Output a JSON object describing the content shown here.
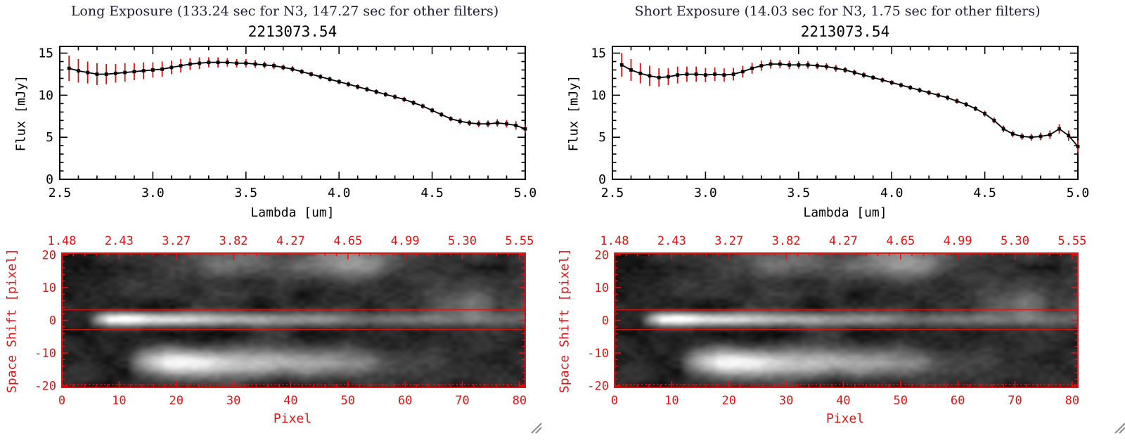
{
  "panels": [
    {
      "title": "Long Exposure (133.24 sec for N3, 147.27 sec for other filters)",
      "plot_title": "2213073.54"
    },
    {
      "title": "Short Exposure (14.03 sec for N3, 1.75 sec for other filters)",
      "plot_title": "2213073.54"
    }
  ],
  "colors": {
    "axis_red": "#e11212",
    "error_red": "#cf1111",
    "line_black": "#000000",
    "title_ink": "#1d1d35"
  },
  "chart_data": [
    {
      "type": "line",
      "panel": "long-exposure-spectrum",
      "title": "2213073.54",
      "xlabel": "Lambda [um]",
      "ylabel": "Flux [mJy]",
      "xlim": [
        2.5,
        5.0
      ],
      "ylim": [
        0,
        15.8
      ],
      "x_tick_values": [
        2.5,
        3.0,
        3.5,
        4.0,
        4.5,
        5.0
      ],
      "x_tick_labels": [
        "2.5",
        "3.0",
        "3.5",
        "4.0",
        "4.5",
        "5.0"
      ],
      "y_tick_values": [
        0,
        5,
        10,
        15
      ],
      "y_tick_labels": [
        "0",
        "5",
        "10",
        "15"
      ],
      "x_minor_step": 0.1,
      "y_minor_step": 1,
      "marker": "filled-square",
      "line_color": "#000000",
      "error_color": "#cf1111",
      "lambda_um": [
        2.55,
        2.6,
        2.65,
        2.7,
        2.75,
        2.8,
        2.85,
        2.9,
        2.95,
        3.0,
        3.05,
        3.1,
        3.15,
        3.2,
        3.25,
        3.3,
        3.35,
        3.4,
        3.45,
        3.5,
        3.55,
        3.6,
        3.65,
        3.7,
        3.75,
        3.8,
        3.85,
        3.9,
        3.95,
        4.0,
        4.05,
        4.1,
        4.15,
        4.2,
        4.25,
        4.3,
        4.35,
        4.4,
        4.45,
        4.5,
        4.55,
        4.6,
        4.65,
        4.7,
        4.75,
        4.8,
        4.85,
        4.9,
        4.95,
        5.0
      ],
      "flux_mjy": [
        13.2,
        12.9,
        12.7,
        12.5,
        12.5,
        12.6,
        12.7,
        12.8,
        12.9,
        13.0,
        13.1,
        13.3,
        13.5,
        13.7,
        13.8,
        13.9,
        13.9,
        13.9,
        13.8,
        13.8,
        13.7,
        13.6,
        13.5,
        13.3,
        13.1,
        12.8,
        12.5,
        12.2,
        11.9,
        11.6,
        11.3,
        11.0,
        10.7,
        10.4,
        10.1,
        9.8,
        9.5,
        9.1,
        8.7,
        8.2,
        7.7,
        7.2,
        6.9,
        6.7,
        6.6,
        6.6,
        6.7,
        6.6,
        6.4,
        6.0
      ],
      "flux_err_mjy": [
        1.5,
        1.4,
        1.3,
        1.3,
        1.2,
        1.1,
        1.1,
        1.0,
        1.0,
        0.9,
        0.9,
        0.8,
        0.8,
        0.7,
        0.7,
        0.6,
        0.6,
        0.5,
        0.5,
        0.5,
        0.45,
        0.4,
        0.4,
        0.35,
        0.35,
        0.3,
        0.3,
        0.3,
        0.3,
        0.3,
        0.3,
        0.3,
        0.3,
        0.3,
        0.3,
        0.3,
        0.3,
        0.3,
        0.3,
        0.3,
        0.3,
        0.3,
        0.35,
        0.35,
        0.4,
        0.4,
        0.45,
        0.45,
        0.5,
        0.5
      ]
    },
    {
      "type": "line",
      "panel": "short-exposure-spectrum",
      "title": "2213073.54",
      "xlabel": "Lambda [um]",
      "ylabel": "Flux [mJy]",
      "xlim": [
        2.5,
        5.0
      ],
      "ylim": [
        0,
        15.8
      ],
      "x_tick_values": [
        2.5,
        3.0,
        3.5,
        4.0,
        4.5,
        5.0
      ],
      "x_tick_labels": [
        "2.5",
        "3.0",
        "3.5",
        "4.0",
        "4.5",
        "5.0"
      ],
      "y_tick_values": [
        0,
        5,
        10,
        15
      ],
      "y_tick_labels": [
        "0",
        "5",
        "10",
        "15"
      ],
      "x_minor_step": 0.1,
      "y_minor_step": 1,
      "marker": "filled-square",
      "line_color": "#000000",
      "error_color": "#cf1111",
      "lambda_um": [
        2.55,
        2.6,
        2.65,
        2.7,
        2.75,
        2.8,
        2.85,
        2.9,
        2.95,
        3.0,
        3.05,
        3.1,
        3.15,
        3.2,
        3.25,
        3.3,
        3.35,
        3.4,
        3.45,
        3.5,
        3.55,
        3.6,
        3.65,
        3.7,
        3.75,
        3.8,
        3.85,
        3.9,
        3.95,
        4.0,
        4.05,
        4.1,
        4.15,
        4.2,
        4.25,
        4.3,
        4.35,
        4.4,
        4.45,
        4.5,
        4.55,
        4.6,
        4.65,
        4.7,
        4.75,
        4.8,
        4.85,
        4.9,
        4.95,
        5.0
      ],
      "flux_mjy": [
        13.6,
        13.0,
        12.6,
        12.3,
        12.1,
        12.2,
        12.4,
        12.5,
        12.5,
        12.4,
        12.5,
        12.4,
        12.5,
        12.8,
        13.2,
        13.5,
        13.7,
        13.7,
        13.6,
        13.6,
        13.6,
        13.5,
        13.4,
        13.2,
        13.0,
        12.7,
        12.4,
        12.1,
        11.8,
        11.5,
        11.2,
        10.9,
        10.6,
        10.3,
        10.0,
        9.7,
        9.3,
        8.9,
        8.4,
        7.8,
        7.0,
        6.0,
        5.4,
        5.1,
        5.0,
        5.1,
        5.3,
        6.0,
        5.2,
        3.9
      ],
      "flux_err_mjy": [
        1.4,
        1.3,
        1.2,
        1.2,
        1.1,
        1.0,
        1.0,
        0.9,
        0.9,
        0.85,
        0.8,
        0.8,
        0.75,
        0.7,
        0.65,
        0.6,
        0.55,
        0.5,
        0.5,
        0.45,
        0.45,
        0.4,
        0.4,
        0.4,
        0.35,
        0.35,
        0.35,
        0.3,
        0.3,
        0.3,
        0.3,
        0.3,
        0.3,
        0.3,
        0.3,
        0.3,
        0.3,
        0.3,
        0.3,
        0.35,
        0.35,
        0.4,
        0.4,
        0.4,
        0.4,
        0.45,
        0.5,
        0.55,
        0.6,
        0.7
      ]
    },
    {
      "type": "heatmap",
      "panel": "both-detector-images",
      "colormap": "grayscale",
      "xlabel": "Pixel",
      "ylabel": "Space Shift [pixel]",
      "top_axis_labels": [
        "1.48",
        "2.43",
        "3.27",
        "3.82",
        "4.27",
        "4.65",
        "4.99",
        "5.30",
        "5.55"
      ],
      "x_tick_values": [
        0,
        10,
        20,
        30,
        40,
        50,
        60,
        70,
        80
      ],
      "x_tick_labels": [
        "0",
        "10",
        "20",
        "30",
        "40",
        "50",
        "60",
        "70",
        "80"
      ],
      "y_tick_values": [
        20,
        10,
        0,
        -10,
        -20
      ],
      "y_tick_labels": [
        "20",
        "10",
        "0",
        "-10",
        "-20"
      ],
      "xlim": [
        0,
        81
      ],
      "ylim": [
        -20.5,
        20.5
      ],
      "axis_color": "#e11212",
      "aperture_lines_y": [
        3.2,
        -2.8
      ],
      "dotted_line_y": -19.6,
      "noise_seed": 7,
      "features": [
        {
          "name": "central-spectrum-trace",
          "y": 0.3,
          "sigma": 1.5,
          "profile": [
            [
              0,
              0
            ],
            [
              4,
              0.02
            ],
            [
              6,
              0.5
            ],
            [
              8,
              0.95
            ],
            [
              11,
              1.0
            ],
            [
              16,
              0.8
            ],
            [
              24,
              0.6
            ],
            [
              36,
              0.45
            ],
            [
              50,
              0.33
            ],
            [
              65,
              0.26
            ],
            [
              81,
              0.22
            ]
          ]
        },
        {
          "name": "lower-source-trace",
          "y": -13,
          "sigma": 3.0,
          "profile": [
            [
              0,
              0
            ],
            [
              11,
              0
            ],
            [
              14,
              0.5
            ],
            [
              18,
              0.82
            ],
            [
              24,
              0.78
            ],
            [
              32,
              0.6
            ],
            [
              40,
              0.5
            ],
            [
              47,
              0.48
            ],
            [
              52,
              0.4
            ],
            [
              57,
              0.16
            ],
            [
              63,
              0.07
            ],
            [
              81,
              0.03
            ]
          ]
        },
        {
          "name": "upper-diffuse-emission",
          "y": 18.5,
          "sigma": 4.5,
          "profile": [
            [
              0,
              0
            ],
            [
              14,
              0.05
            ],
            [
              20,
              0.12
            ],
            [
              26,
              0.28
            ],
            [
              32,
              0.26
            ],
            [
              38,
              0.16
            ],
            [
              44,
              0.28
            ],
            [
              50,
              0.44
            ],
            [
              55,
              0.38
            ],
            [
              60,
              0.18
            ],
            [
              66,
              0.08
            ],
            [
              81,
              0.02
            ]
          ]
        },
        {
          "name": "right-faint-blob",
          "y": 5,
          "sigma": 3.5,
          "profile": [
            [
              0,
              0
            ],
            [
              62,
              0
            ],
            [
              68,
              0.18
            ],
            [
              72,
              0.28
            ],
            [
              76,
              0.16
            ],
            [
              81,
              0.07
            ]
          ]
        }
      ]
    }
  ]
}
